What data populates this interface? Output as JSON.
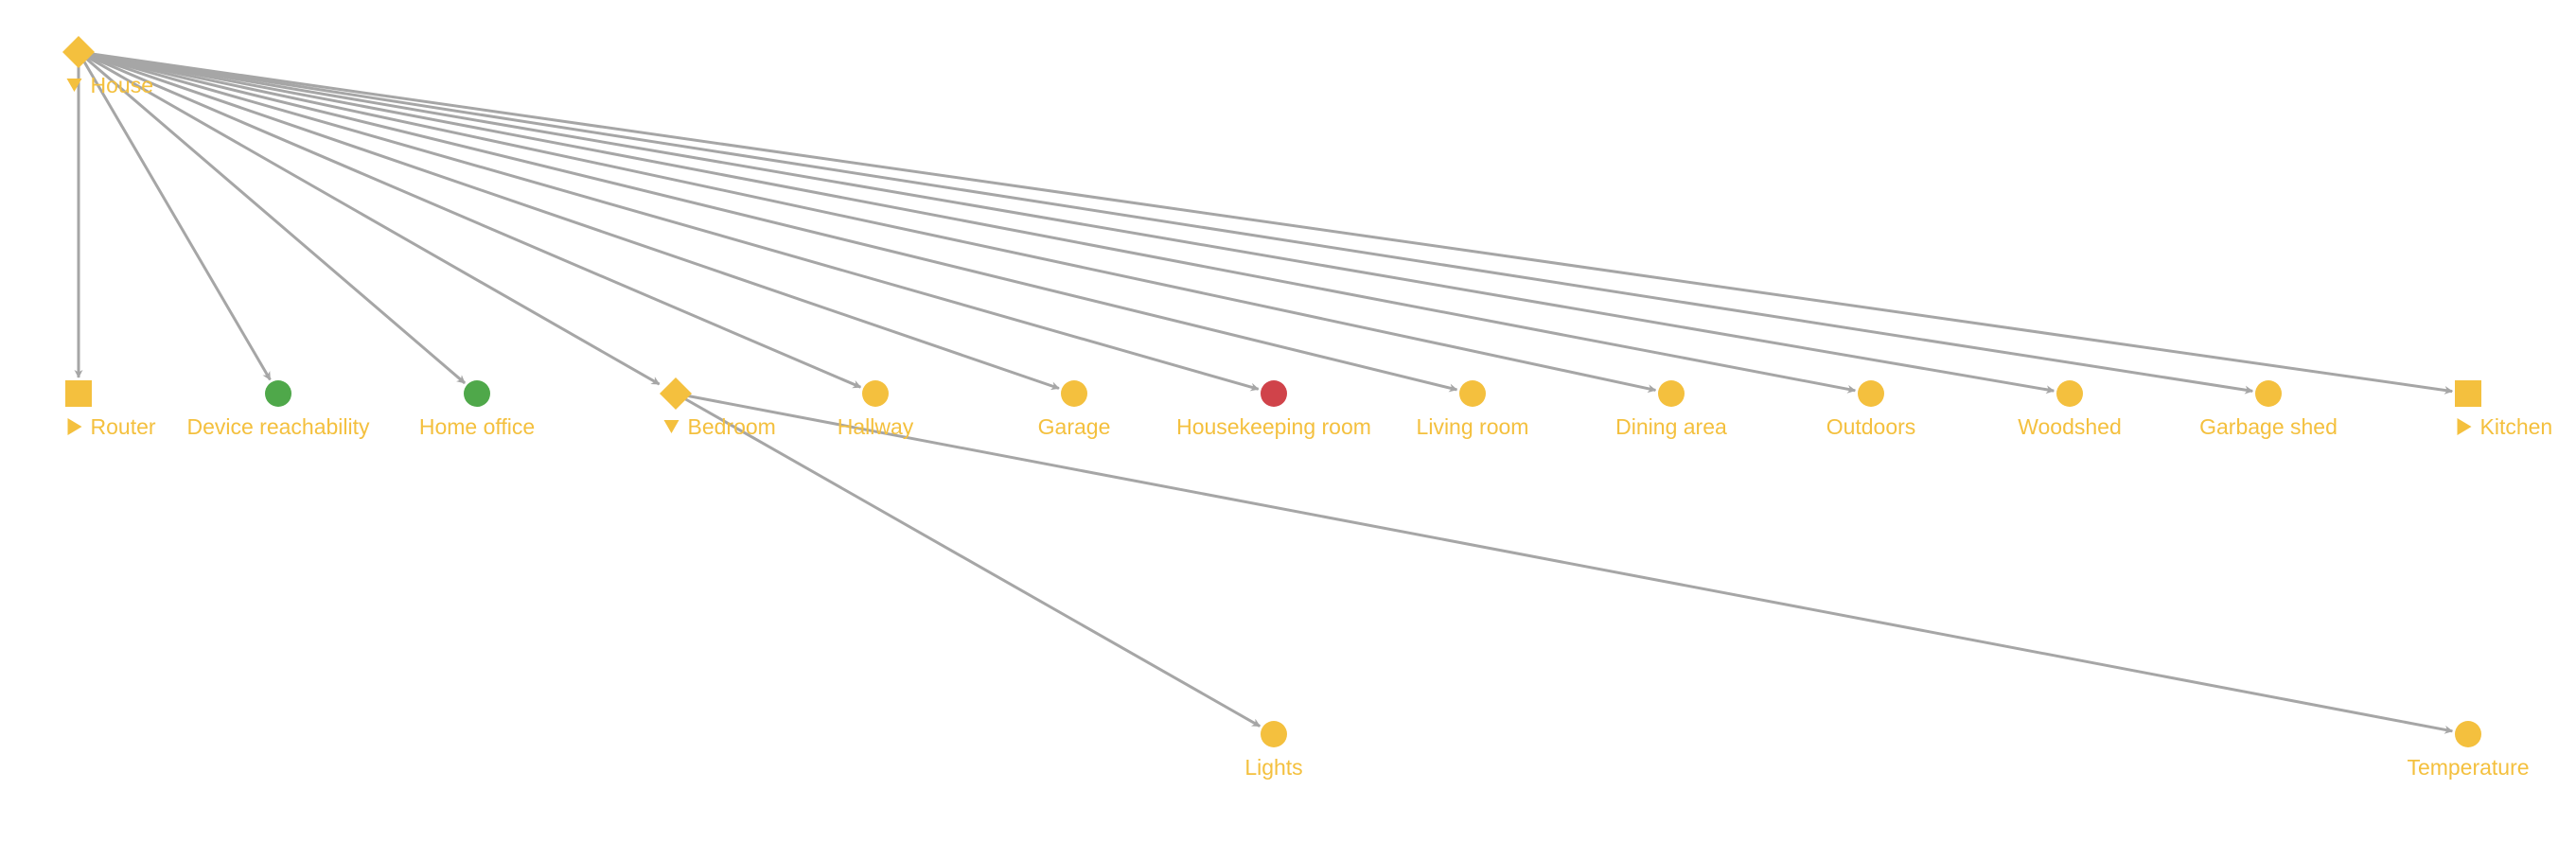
{
  "colors": {
    "edge": "#a6a6a6",
    "label": "#f4c03e",
    "status_ok": "#f4c03e",
    "status_good": "#4fa84a",
    "status_alert": "#d0434a",
    "background": "#ffffff"
  },
  "nodes": [
    {
      "id": "house",
      "label": "House",
      "shape": "diamond",
      "status": "status_ok",
      "toggle": "expanded"
    },
    {
      "id": "router",
      "label": "Router",
      "shape": "square",
      "status": "status_ok",
      "toggle": "collapsed"
    },
    {
      "id": "device-reachability",
      "label": "Device reachability",
      "shape": "circle",
      "status": "status_good",
      "toggle": null
    },
    {
      "id": "home-office",
      "label": "Home office",
      "shape": "circle",
      "status": "status_good",
      "toggle": null
    },
    {
      "id": "bedroom",
      "label": "Bedroom",
      "shape": "diamond",
      "status": "status_ok",
      "toggle": "expanded"
    },
    {
      "id": "hallway",
      "label": "Hallway",
      "shape": "circle",
      "status": "status_ok",
      "toggle": null
    },
    {
      "id": "garage",
      "label": "Garage",
      "shape": "circle",
      "status": "status_ok",
      "toggle": null
    },
    {
      "id": "housekeeping-room",
      "label": "Housekeeping room",
      "shape": "circle",
      "status": "status_alert",
      "toggle": null
    },
    {
      "id": "living-room",
      "label": "Living room",
      "shape": "circle",
      "status": "status_ok",
      "toggle": null
    },
    {
      "id": "dining-area",
      "label": "Dining area",
      "shape": "circle",
      "status": "status_ok",
      "toggle": null
    },
    {
      "id": "outdoors",
      "label": "Outdoors",
      "shape": "circle",
      "status": "status_ok",
      "toggle": null
    },
    {
      "id": "woodshed",
      "label": "Woodshed",
      "shape": "circle",
      "status": "status_ok",
      "toggle": null
    },
    {
      "id": "garbage-shed",
      "label": "Garbage shed",
      "shape": "circle",
      "status": "status_ok",
      "toggle": null
    },
    {
      "id": "kitchen",
      "label": "Kitchen",
      "shape": "square",
      "status": "status_ok",
      "toggle": "collapsed"
    },
    {
      "id": "lights",
      "label": "Lights",
      "shape": "circle",
      "status": "status_ok",
      "toggle": null
    },
    {
      "id": "temperature",
      "label": "Temperature",
      "shape": "circle",
      "status": "status_ok",
      "toggle": null
    }
  ],
  "edges": [
    {
      "from": "house",
      "to": "router"
    },
    {
      "from": "house",
      "to": "device-reachability"
    },
    {
      "from": "house",
      "to": "home-office"
    },
    {
      "from": "house",
      "to": "bedroom"
    },
    {
      "from": "house",
      "to": "hallway"
    },
    {
      "from": "house",
      "to": "garage"
    },
    {
      "from": "house",
      "to": "housekeeping-room"
    },
    {
      "from": "house",
      "to": "living-room"
    },
    {
      "from": "house",
      "to": "dining-area"
    },
    {
      "from": "house",
      "to": "outdoors"
    },
    {
      "from": "house",
      "to": "woodshed"
    },
    {
      "from": "house",
      "to": "garbage-shed"
    },
    {
      "from": "house",
      "to": "kitchen"
    },
    {
      "from": "bedroom",
      "to": "lights"
    },
    {
      "from": "bedroom",
      "to": "temperature"
    }
  ]
}
